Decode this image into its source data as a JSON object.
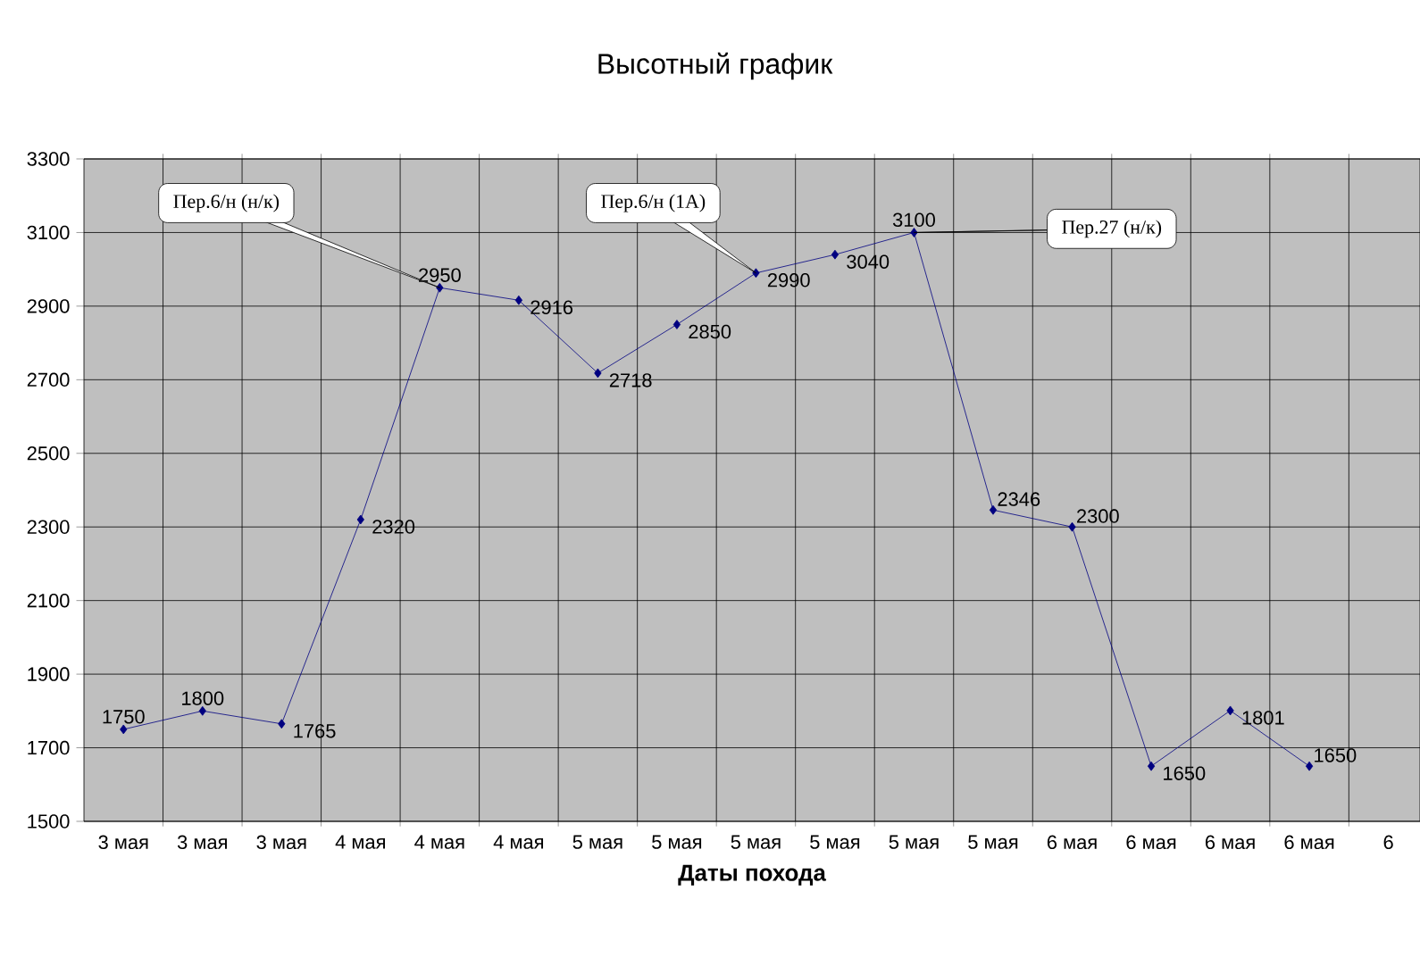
{
  "chart_data": {
    "type": "line",
    "title": "Высотный график",
    "xlabel": "Даты похода",
    "categories": [
      "3 мая",
      "3 мая",
      "3 мая",
      "4 мая",
      "4 мая",
      "4 мая",
      "5 мая",
      "5 мая",
      "5 мая",
      "5 мая",
      "5 мая",
      "5 мая",
      "6 мая",
      "6 мая",
      "6 мая",
      "6 мая",
      "6"
    ],
    "series": [
      {
        "color": "#000080",
        "values": [
          1750,
          1800,
          1765,
          2320,
          2950,
          2916,
          2718,
          2850,
          2990,
          3040,
          3100,
          2346,
          2300,
          1650,
          1801,
          1650,
          null
        ]
      }
    ],
    "ylim": [
      1500,
      3300
    ],
    "yticks": [
      1500,
      1700,
      1900,
      2100,
      2300,
      2500,
      2700,
      2900,
      3100,
      3300
    ],
    "grid": true,
    "marker": "diamond",
    "line_style": "solid",
    "data_labels": true,
    "annotations": [
      "Пер.6/н (н/к)",
      "Пер.6/н (1А)",
      "Пер.27 (н/к)"
    ]
  }
}
